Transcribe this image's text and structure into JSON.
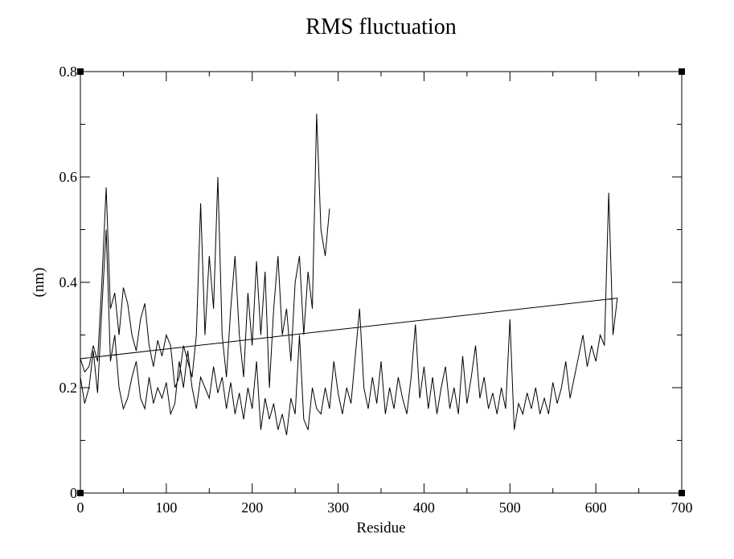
{
  "chart_data": {
    "type": "line",
    "title": "RMS fluctuation",
    "x_label": "Residue",
    "y_label": "(nm)",
    "color": "#000000",
    "x": [
      0,
      5,
      10,
      15,
      20,
      25,
      30,
      35,
      40,
      45,
      50,
      55,
      60,
      65,
      70,
      75,
      80,
      85,
      90,
      95,
      100,
      105,
      110,
      115,
      120,
      125,
      130,
      135,
      140,
      145,
      150,
      155,
      160,
      165,
      170,
      175,
      180,
      185,
      190,
      195,
      200,
      205,
      210,
      215,
      220,
      225,
      230,
      235,
      240,
      245,
      250,
      255,
      260,
      265,
      270,
      275,
      280,
      285,
      290,
      295,
      300,
      305,
      310,
      315,
      320,
      325,
      330,
      335,
      340,
      345,
      350,
      355,
      360,
      365,
      370,
      375,
      380,
      385,
      390,
      395,
      400,
      405,
      410,
      415,
      420,
      425,
      430,
      435,
      440,
      445,
      450,
      455,
      460,
      465,
      470,
      475,
      480,
      485,
      490,
      495,
      500,
      505,
      510,
      515,
      520,
      525,
      530,
      535,
      540,
      545,
      550,
      555,
      560,
      565,
      570,
      575,
      580,
      585,
      590,
      595,
      600,
      605,
      610,
      615,
      620,
      625,
      0,
      5,
      10,
      15,
      20,
      25,
      30,
      35,
      40,
      45,
      50,
      55,
      60,
      65,
      70,
      75,
      80,
      85,
      90,
      95,
      100,
      105,
      110,
      115,
      120,
      125,
      130,
      135,
      140,
      145,
      150,
      155,
      160,
      165,
      170,
      175,
      180,
      185,
      190,
      195,
      200,
      205,
      210,
      215,
      220,
      225,
      230,
      235,
      240,
      245,
      250,
      255,
      260,
      265,
      270,
      275,
      280,
      285,
      290
    ],
    "values": [
      0.22,
      0.17,
      0.2,
      0.27,
      0.19,
      0.35,
      0.5,
      0.25,
      0.3,
      0.2,
      0.16,
      0.18,
      0.22,
      0.25,
      0.18,
      0.16,
      0.22,
      0.17,
      0.2,
      0.18,
      0.21,
      0.15,
      0.17,
      0.25,
      0.2,
      0.27,
      0.2,
      0.16,
      0.22,
      0.2,
      0.18,
      0.24,
      0.19,
      0.22,
      0.16,
      0.21,
      0.15,
      0.19,
      0.14,
      0.2,
      0.16,
      0.25,
      0.12,
      0.18,
      0.14,
      0.17,
      0.12,
      0.15,
      0.11,
      0.18,
      0.15,
      0.3,
      0.14,
      0.12,
      0.2,
      0.16,
      0.15,
      0.2,
      0.16,
      0.25,
      0.19,
      0.15,
      0.2,
      0.17,
      0.26,
      0.35,
      0.2,
      0.16,
      0.22,
      0.17,
      0.25,
      0.15,
      0.2,
      0.16,
      0.22,
      0.18,
      0.15,
      0.22,
      0.32,
      0.18,
      0.24,
      0.16,
      0.22,
      0.15,
      0.2,
      0.24,
      0.16,
      0.2,
      0.15,
      0.26,
      0.17,
      0.22,
      0.28,
      0.18,
      0.22,
      0.16,
      0.19,
      0.15,
      0.2,
      0.16,
      0.33,
      0.12,
      0.17,
      0.15,
      0.19,
      0.16,
      0.2,
      0.15,
      0.18,
      0.15,
      0.21,
      0.17,
      0.2,
      0.25,
      0.18,
      0.22,
      0.26,
      0.3,
      0.24,
      0.28,
      0.25,
      0.3,
      0.28,
      0.57,
      0.3,
      0.37,
      0.255,
      0.23,
      0.24,
      0.28,
      0.25,
      0.4,
      0.58,
      0.35,
      0.38,
      0.3,
      0.39,
      0.36,
      0.3,
      0.27,
      0.33,
      0.36,
      0.28,
      0.24,
      0.29,
      0.26,
      0.3,
      0.28,
      0.2,
      0.22,
      0.28,
      0.25,
      0.22,
      0.3,
      0.55,
      0.3,
      0.45,
      0.35,
      0.6,
      0.3,
      0.22,
      0.35,
      0.45,
      0.3,
      0.22,
      0.38,
      0.28,
      0.44,
      0.3,
      0.42,
      0.2,
      0.35,
      0.45,
      0.3,
      0.35,
      0.25,
      0.4,
      0.45,
      0.3,
      0.42,
      0.35,
      0.72,
      0.5,
      0.45,
      0.54
    ],
    "xlim": [
      0,
      700
    ],
    "ylim": [
      0,
      0.8
    ],
    "xticks": [
      0,
      100,
      200,
      300,
      400,
      500,
      600,
      700
    ],
    "yticks": [
      0,
      0.2,
      0.4,
      0.6,
      0.8
    ],
    "xminorticks": [
      50,
      150,
      250,
      350,
      450,
      550,
      650
    ],
    "yminorticks": [
      0.1,
      0.3,
      0.5,
      0.7
    ]
  }
}
